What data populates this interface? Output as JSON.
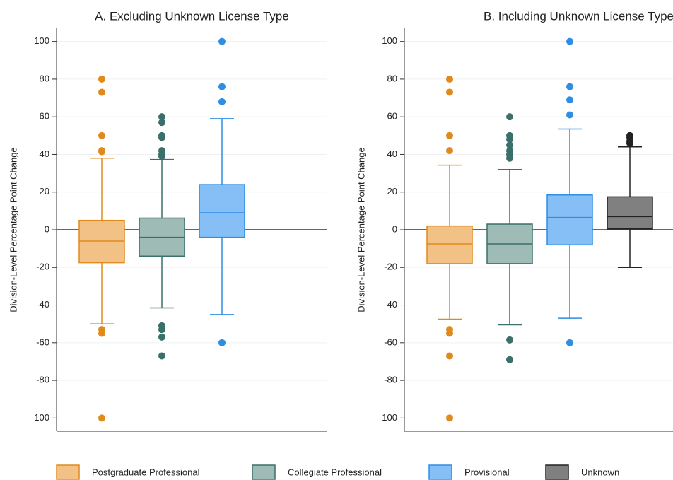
{
  "chart_data": [
    {
      "type": "box",
      "title": "A. Excluding Unknown License Type",
      "ylabel": "Division-Level Percentage Point Change",
      "ylim": [
        -107,
        107
      ],
      "yticks": [
        -100,
        -80,
        -60,
        -40,
        -20,
        0,
        20,
        40,
        60,
        80,
        100
      ],
      "grid": true,
      "hline": 0,
      "series": [
        {
          "color": "#e08a1e",
          "fill": "#f2c185",
          "whislo": -50,
          "q1": -17.5,
          "median": -6,
          "q3": 5,
          "whishi": 38,
          "outliers": [
            80,
            73,
            50,
            42,
            41.5,
            -53,
            -55,
            -100
          ]
        },
        {
          "color": "#3b706a",
          "fill": "#9fbbb6",
          "whislo": -41.5,
          "q1": -14,
          "median": -4,
          "q3": 6.2,
          "whishi": 37.3,
          "outliers": [
            60,
            57,
            50,
            49,
            42,
            40,
            39,
            -51,
            -53,
            -57,
            -67
          ]
        },
        {
          "color": "#2f8de4",
          "fill": "#85bff5",
          "whislo": -45,
          "q1": -4,
          "median": 9,
          "q3": 24,
          "whishi": 59,
          "outliers": [
            100,
            76,
            68,
            -60
          ]
        }
      ]
    },
    {
      "type": "box",
      "title": "B. Including Unknown License Type",
      "ylabel": "Division-Level Percentage Point Change",
      "ylim": [
        -107,
        107
      ],
      "yticks": [
        -100,
        -80,
        -60,
        -40,
        -20,
        0,
        20,
        40,
        60,
        80,
        100
      ],
      "grid": true,
      "hline": 0,
      "series": [
        {
          "name": "Postgraduate Professional",
          "color": "#e08a1e",
          "fill": "#f2c185",
          "whislo": -47.5,
          "q1": -18,
          "median": -7.5,
          "q3": 2,
          "whishi": 34.3,
          "outliers": [
            80,
            73,
            50,
            42,
            -53,
            -55,
            -67,
            -100
          ]
        },
        {
          "name": "Collegiate Professional",
          "color": "#3b706a",
          "fill": "#9fbbb6",
          "whislo": -50.5,
          "q1": -18,
          "median": -7.5,
          "q3": 3,
          "whishi": 32,
          "outliers": [
            60,
            50,
            48,
            45,
            42,
            40,
            38,
            -58.5,
            -69
          ]
        },
        {
          "name": "Provisional",
          "color": "#2f8de4",
          "fill": "#85bff5",
          "whislo": -47,
          "q1": -8,
          "median": 6.5,
          "q3": 18.5,
          "whishi": 53.5,
          "outliers": [
            100,
            76,
            69,
            61,
            -60
          ]
        },
        {
          "name": "Unknown",
          "color": "#222222",
          "fill": "#808080",
          "whislo": -20,
          "q1": 0.5,
          "median": 7,
          "q3": 17.5,
          "whishi": 44,
          "outliers": [
            50,
            49,
            47,
            46
          ]
        }
      ]
    }
  ]
}
